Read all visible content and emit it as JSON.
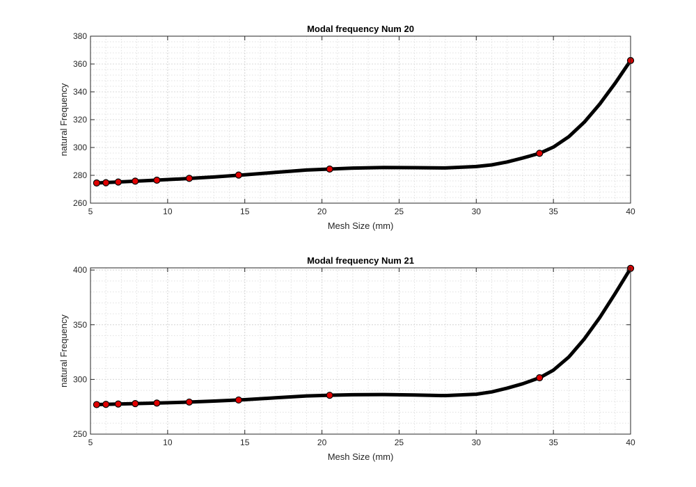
{
  "colors": {
    "line": "#000000",
    "marker_fill": "#e00000",
    "marker_edge": "#000000",
    "axis": "#262626"
  },
  "chart_data": [
    {
      "type": "line",
      "title": "Modal frequency Num 20",
      "xlabel": "Mesh Size (mm)",
      "ylabel": "natural Frequency",
      "xlim": [
        5,
        40
      ],
      "ylim": [
        260,
        380
      ],
      "xticks": [
        5,
        10,
        15,
        20,
        25,
        30,
        35,
        40
      ],
      "yticks": [
        260,
        280,
        300,
        320,
        340,
        360,
        380
      ],
      "grid": true,
      "x": [
        5.4,
        6.0,
        6.8,
        7.9,
        9.3,
        11.4,
        14.6,
        20.5,
        34.1,
        40.0
      ],
      "y": [
        274.5,
        274.7,
        275.2,
        275.8,
        276.5,
        277.8,
        280.2,
        284.5,
        295.8,
        362.5
      ],
      "curve_x": [
        5.4,
        7,
        9,
        11,
        13,
        15,
        17,
        19,
        20.5,
        22,
        24,
        26,
        28,
        30,
        31,
        32,
        33,
        34.1,
        35,
        36,
        37,
        38,
        39,
        40
      ],
      "curve_y": [
        274.5,
        275.3,
        276.4,
        277.5,
        278.8,
        280.4,
        282.1,
        283.8,
        284.5,
        285.2,
        285.6,
        285.5,
        285.3,
        286.3,
        287.5,
        289.6,
        292.4,
        295.8,
        300.3,
        307.8,
        318.2,
        331.2,
        346.2,
        362.5
      ]
    },
    {
      "type": "line",
      "title": "Modal frequency Num 21",
      "xlabel": "Mesh Size (mm)",
      "ylabel": "natural Frequency",
      "xlim": [
        5,
        40
      ],
      "ylim": [
        250,
        402
      ],
      "xticks": [
        5,
        10,
        15,
        20,
        25,
        30,
        35,
        40
      ],
      "yticks": [
        250,
        300,
        350,
        400
      ],
      "grid": true,
      "x": [
        5.4,
        6.0,
        6.8,
        7.9,
        9.3,
        11.4,
        14.6,
        20.5,
        34.1,
        40.0
      ],
      "y": [
        277.0,
        277.2,
        277.5,
        277.9,
        278.4,
        279.3,
        281.2,
        285.5,
        301.5,
        401.5
      ],
      "curve_x": [
        5.4,
        7,
        9,
        11,
        13,
        15,
        17,
        19,
        20.5,
        22,
        24,
        26,
        28,
        30,
        31,
        32,
        33,
        34.1,
        35,
        36,
        37,
        38,
        39,
        40
      ],
      "curve_y": [
        277.0,
        277.6,
        278.3,
        279.1,
        280.2,
        281.5,
        283.2,
        284.9,
        285.5,
        286.0,
        286.2,
        285.8,
        285.2,
        286.5,
        288.6,
        292.0,
        296.0,
        301.5,
        308.5,
        320.5,
        337.0,
        356.5,
        378.5,
        401.5
      ]
    }
  ]
}
